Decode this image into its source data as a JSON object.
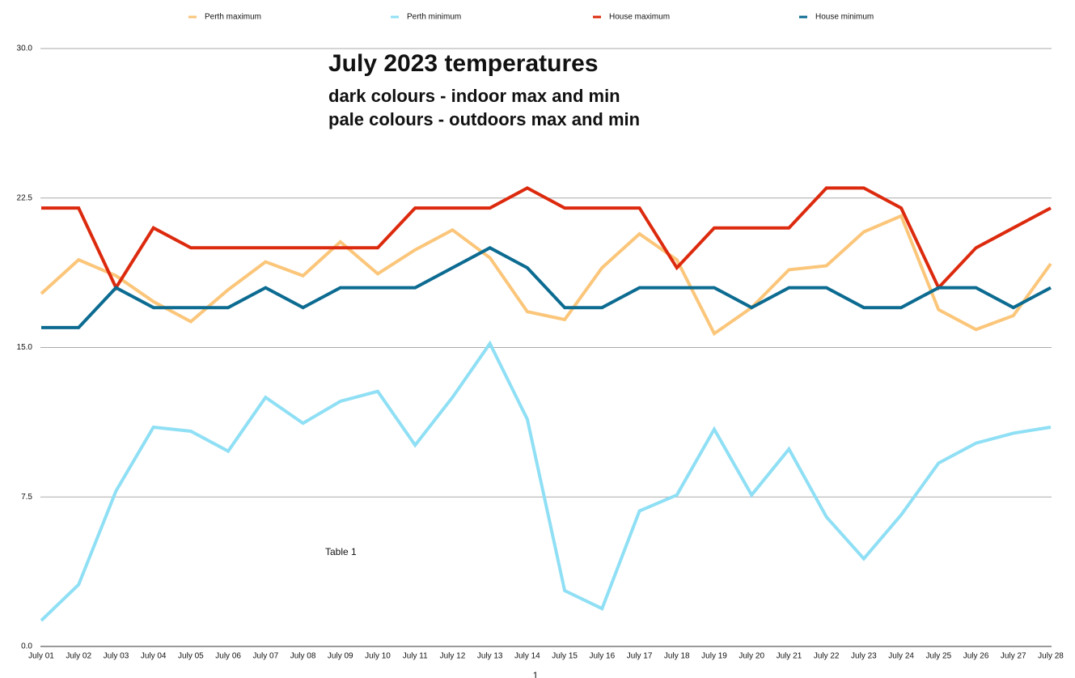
{
  "chart_data": {
    "type": "line",
    "title": "July 2023 temperatures",
    "subtitle_lines": [
      "dark colours - indoor max and min",
      "pale colours - outdoors max and min"
    ],
    "annotation": "Table 1",
    "page_number": "1",
    "categories": [
      "July 01",
      "July 02",
      "July 03",
      "July 04",
      "July 05",
      "July 06",
      "July 07",
      "July 08",
      "July 09",
      "July 10",
      "July 11",
      "July 12",
      "July 13",
      "July 14",
      "July 15",
      "July 16",
      "July 17",
      "July 18",
      "July 19",
      "July 20",
      "July 21",
      "July 22",
      "July 23",
      "July 24",
      "July 25",
      "July 26",
      "July 27",
      "July 28"
    ],
    "series": [
      {
        "name": "Perth maximum",
        "color": "#fbc67a",
        "values": [
          17.7,
          19.4,
          18.6,
          17.3,
          16.3,
          17.9,
          19.3,
          18.6,
          20.3,
          18.7,
          19.9,
          20.9,
          19.5,
          16.8,
          16.4,
          19.0,
          20.7,
          19.4,
          15.7,
          17.0,
          18.9,
          19.1,
          20.8,
          21.6,
          16.9,
          15.9,
          16.6,
          19.2
        ]
      },
      {
        "name": "Perth minimum",
        "color": "#8fdff5",
        "values": [
          1.3,
          3.1,
          7.8,
          11.0,
          10.8,
          9.8,
          12.5,
          11.2,
          12.3,
          12.8,
          10.1,
          12.5,
          15.2,
          11.4,
          2.8,
          1.9,
          6.8,
          7.6,
          10.9,
          7.6,
          9.9,
          6.5,
          4.4,
          6.6,
          9.2,
          10.2,
          10.7,
          11.0
        ]
      },
      {
        "name": "House maximum",
        "color": "#dc2a0e",
        "values": [
          22,
          22,
          18,
          21,
          20,
          20,
          20,
          20,
          20,
          20,
          22,
          22,
          22,
          23,
          22,
          22,
          22,
          19,
          21,
          21,
          21,
          23,
          23,
          22,
          18,
          20,
          21,
          22
        ]
      },
      {
        "name": "House minimum",
        "color": "#0c6b91",
        "values": [
          16,
          16,
          18,
          17,
          17,
          17,
          18,
          17,
          18,
          18,
          18,
          19,
          20,
          19,
          17,
          17,
          18,
          18,
          18,
          17,
          18,
          18,
          17,
          17,
          18,
          18,
          17,
          18
        ]
      }
    ],
    "ylim": [
      0,
      30
    ],
    "yticks": [
      {
        "value": 0,
        "label": "0.0"
      },
      {
        "value": 7.5,
        "label": "7.5"
      },
      {
        "value": 15,
        "label": "15.0"
      },
      {
        "value": 22.5,
        "label": "22.5"
      },
      {
        "value": 30,
        "label": "30.0"
      }
    ],
    "grid": true,
    "legend": "top"
  }
}
